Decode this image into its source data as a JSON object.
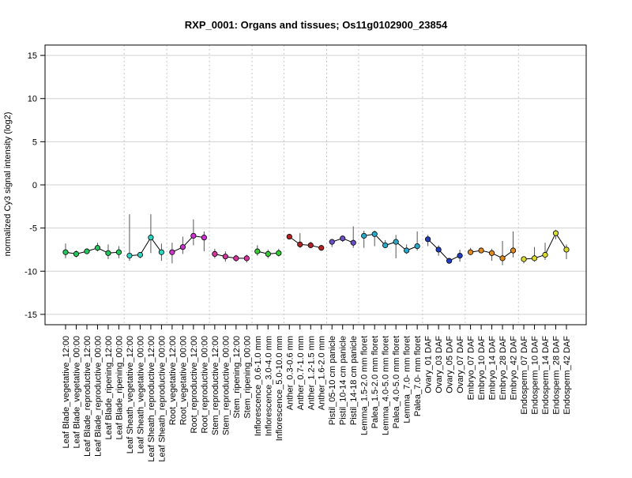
{
  "chart_data": {
    "type": "line",
    "title": "RXP_0001: Organs and tissues; Os11g0102900_23854",
    "xlabel": "",
    "ylabel": "normalized Cy3 signal intensity (log2)",
    "ylim": [
      -16.2,
      16.2
    ],
    "yticks": [
      -15,
      -10,
      -5,
      0,
      5,
      10,
      15
    ],
    "grid": true,
    "categories": [
      "Leaf Blade_vegetative_12:00",
      "Leaf Blade_vegetative_00:00",
      "Leaf Blade_reproductive_12:00",
      "Leaf Blade_reproductive_00:00",
      "Leaf Blade_ripening_12:00",
      "Leaf Blade_ripening_00:00",
      "Leaf Sheath_vegetative_12:00",
      "Leaf Sheath_vegetative_00:00",
      "Leaf Sheath_reproductive_12:00",
      "Leaf Sheath_reproductive_00:00",
      "Root_vegetative_12:00",
      "Root_vegetative_00:00",
      "Root_reproductive_12:00",
      "Root_reproductive_00:00",
      "Stem_reproductive_12:00",
      "Stem_reproductive_00:00",
      "Stem_ripening_12:00",
      "Stem_ripening_00:00",
      "Inflorescence_0.6-1.0 mm",
      "Inflorescence_3.0-4.0 mm",
      "Inflorescence_5.0-10.0 mm",
      "Anther_0.3-0.6 mm",
      "Anther_0.7-1.0 mm",
      "Anther_1.2-1.5 mm",
      "Anther_1.6-2.0 mm",
      "Pistil_05-10 cm panicle",
      "Pistil_10-14 cm panicle",
      "Pistil_14-18 cm panicle",
      "Lemma_1.5-2.0 mm floret",
      "Palea_1.5-2.0 mm floret",
      "Lemma_4.0-5.0 mm floret",
      "Palea_4.0-5.0 mm floret",
      "Lemma_7.0- mm floret",
      "Palea_7.0- mm floret",
      "Ovary_01 DAF",
      "Ovary_03 DAF",
      "Ovary_05 DAF",
      "Ovary_07 DAF",
      "Embryo_07 DAF",
      "Embryo_10 DAF",
      "Embryo_14 DAF",
      "Embryo_28 DAF",
      "Embryo_42 DAF",
      "Endosperm_07 DAF",
      "Endosperm_10 DAF",
      "Endosperm_14 DAF",
      "Endosperm_28 DAF",
      "Endosperm_42 DAF"
    ],
    "values": [
      -7.8,
      -8.0,
      -7.7,
      -7.3,
      -7.9,
      -7.8,
      -8.2,
      -8.1,
      -6.1,
      -7.8,
      -7.8,
      -7.2,
      -5.9,
      -6.1,
      -8.0,
      -8.3,
      -8.5,
      -8.5,
      -7.7,
      -8.0,
      -7.9,
      -6.0,
      -6.9,
      -7.0,
      -7.3,
      -6.6,
      -6.2,
      -6.7,
      -5.9,
      -5.7,
      -7.0,
      -6.6,
      -7.6,
      -7.1,
      -6.3,
      -7.5,
      -8.8,
      -8.2,
      -7.8,
      -7.6,
      -7.9,
      -8.5,
      -7.6,
      -8.6,
      -8.5,
      -8.1,
      -5.6,
      -7.5
    ],
    "error_low": [
      -8.5,
      -8.4,
      -8.0,
      -7.7,
      -8.6,
      -8.5,
      -8.8,
      -8.5,
      -7.9,
      -8.8,
      -9.1,
      -8.0,
      -7.0,
      -7.7,
      -8.5,
      -8.9,
      -8.9,
      -9.0,
      -8.2,
      -8.5,
      -8.3,
      -6.3,
      -7.3,
      -7.3,
      -7.6,
      -7.2,
      -6.6,
      -7.3,
      -7.3,
      -7.1,
      -7.3,
      -8.5,
      -8.0,
      -7.6,
      -7.1,
      -8.2,
      -9.1,
      -8.9,
      -8.0,
      -7.8,
      -8.8,
      -9.3,
      -8.4,
      -9.1,
      -8.9,
      -8.7,
      -6.3,
      -8.6
    ],
    "error_high": [
      -6.8,
      -7.6,
      -7.4,
      -6.7,
      -6.9,
      -7.1,
      -3.4,
      -7.8,
      -3.4,
      -6.8,
      -6.7,
      -6.0,
      -4.0,
      -5.4,
      -7.4,
      -7.7,
      -8.1,
      -8.1,
      -7.0,
      -7.5,
      -7.4,
      -5.7,
      -5.6,
      -6.6,
      -7.0,
      -6.3,
      -5.9,
      -4.8,
      -5.3,
      -5.3,
      -6.4,
      -5.8,
      -6.9,
      -5.4,
      -5.8,
      -7.0,
      -8.5,
      -7.5,
      -7.3,
      -7.3,
      -7.4,
      -6.5,
      -5.4,
      -8.3,
      -7.2,
      -6.7,
      -5.2,
      -6.9
    ],
    "groups": [
      {
        "name": "Leaf Blade",
        "start": 0,
        "end": 5,
        "color": "#22c55e"
      },
      {
        "name": "Leaf Sheath",
        "start": 6,
        "end": 9,
        "color": "#2dd4bf"
      },
      {
        "name": "Root",
        "start": 10,
        "end": 13,
        "color": "#cc33cc"
      },
      {
        "name": "Stem",
        "start": 14,
        "end": 17,
        "color": "#d4359e"
      },
      {
        "name": "Inflorescence",
        "start": 18,
        "end": 20,
        "color": "#33cc33"
      },
      {
        "name": "Anther",
        "start": 21,
        "end": 24,
        "color": "#b22222"
      },
      {
        "name": "Pistil",
        "start": 25,
        "end": 27,
        "color": "#6a4fc9"
      },
      {
        "name": "Lemma/Palea",
        "start": 28,
        "end": 33,
        "color": "#2aa8c8"
      },
      {
        "name": "Ovary",
        "start": 34,
        "end": 37,
        "color": "#1f3fbf"
      },
      {
        "name": "Embryo",
        "start": 38,
        "end": 42,
        "color": "#e08a1e"
      },
      {
        "name": "Endosperm",
        "start": 43,
        "end": 47,
        "color": "#d9d930"
      }
    ],
    "point_colors": [
      "#22c55e",
      "#22c55e",
      "#22c55e",
      "#22c55e",
      "#22c55e",
      "#22c55e",
      "#2dd4bf",
      "#2dd4bf",
      "#2dd4bf",
      "#2dd4bf",
      "#cc33cc",
      "#cc33cc",
      "#cc33cc",
      "#cc33cc",
      "#d4359e",
      "#d4359e",
      "#d4359e",
      "#d4359e",
      "#33cc33",
      "#33cc33",
      "#33cc33",
      "#b22222",
      "#b22222",
      "#b22222",
      "#b22222",
      "#6a4fc9",
      "#6a4fc9",
      "#6a4fc9",
      "#2aa8c8",
      "#2aa8c8",
      "#2aa8c8",
      "#2aa8c8",
      "#2aa8c8",
      "#2aa8c8",
      "#1f3fbf",
      "#1f3fbf",
      "#1f3fbf",
      "#1f3fbf",
      "#e08a1e",
      "#e08a1e",
      "#e08a1e",
      "#e08a1e",
      "#e08a1e",
      "#d9d930",
      "#d9d930",
      "#d9d930",
      "#d9d930",
      "#d9d930"
    ]
  }
}
